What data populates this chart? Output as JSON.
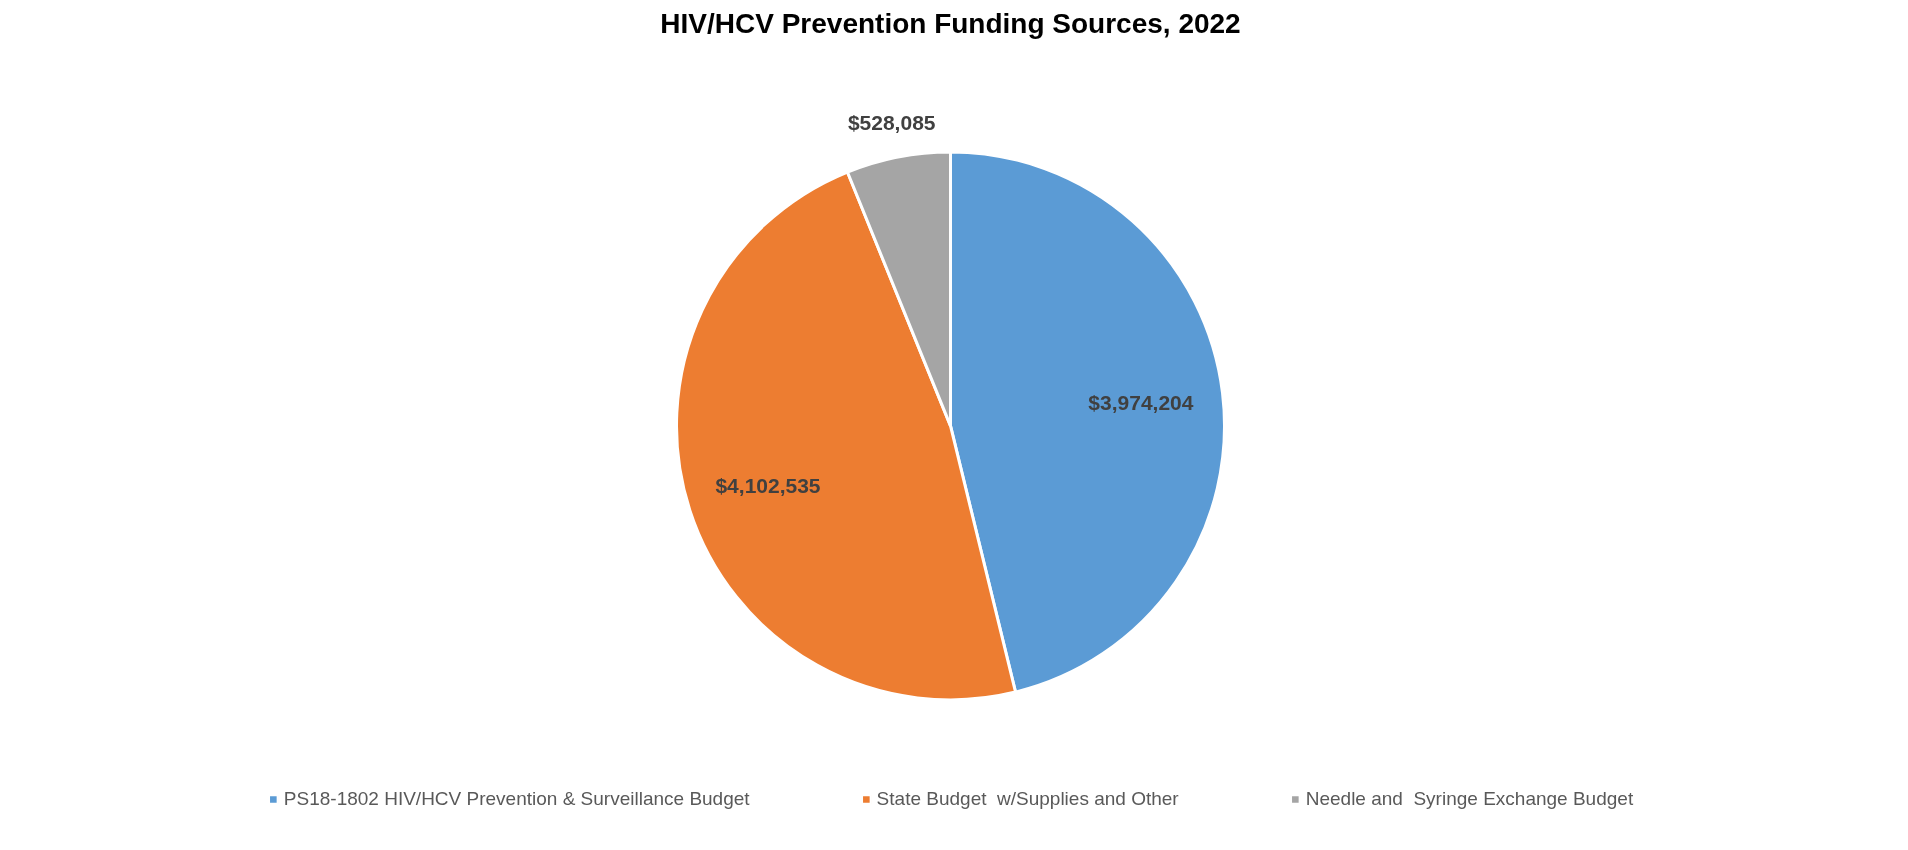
{
  "chart_data": {
    "type": "pie",
    "title": "HIV/HCV Prevention Funding Sources, 2022",
    "categories": [
      "PS18-1802 HIV/HCV Prevention & Surveillance Budget",
      "State Budget  w/Supplies and Other",
      "Needle and  Syringe Exchange Budget"
    ],
    "values": [
      3974204,
      4102535,
      528085
    ],
    "colors": [
      "#5b9bd5",
      "#ed7d31",
      "#a5a5a5"
    ],
    "value_labels": [
      "$3,974,204",
      "$4,102,535",
      "$528,085"
    ],
    "legend": "bottom"
  }
}
